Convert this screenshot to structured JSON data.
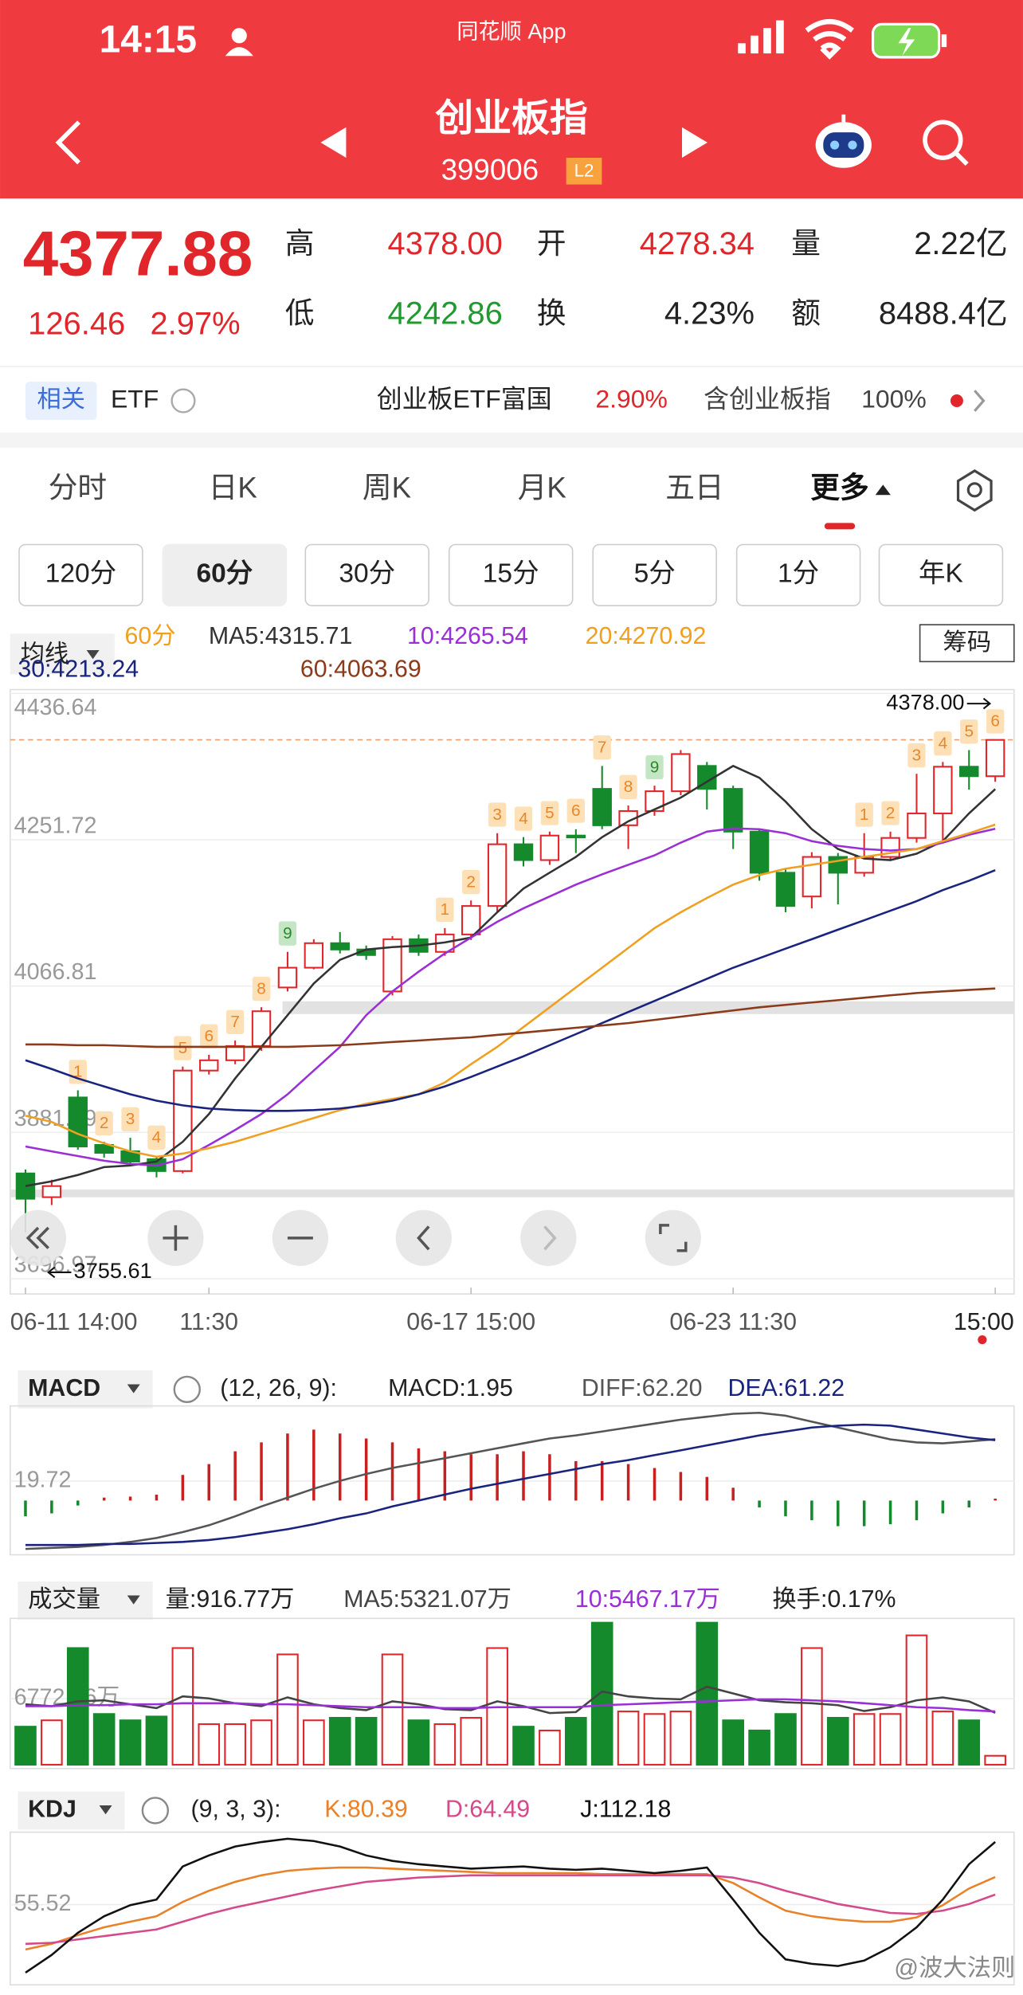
{
  "status_bar": {
    "time": "14:15",
    "app": "同花顺 App"
  },
  "header": {
    "title": "创业板指",
    "code": "399006",
    "badge": "L2"
  },
  "quote": {
    "price": "4377.88",
    "change": "126.46",
    "change_pct": "2.97%",
    "stats": [
      {
        "label": "高",
        "value": "4378.00"
      },
      {
        "label": "开",
        "value": "4278.34"
      },
      {
        "label": "量",
        "value": "2.22亿"
      },
      {
        "label": "低",
        "value": "4242.86"
      },
      {
        "label": "换",
        "value": "4.23%"
      },
      {
        "label": "额",
        "value": "8488.4亿"
      }
    ]
  },
  "related": {
    "tag": "相关",
    "etf": "ETF",
    "fund": "创业板ETF富国",
    "fund_change": "2.90%",
    "index": "含创业板指",
    "weight": "100%"
  },
  "tabs": [
    "分时",
    "日K",
    "周K",
    "月K",
    "五日",
    "更多"
  ],
  "active_tab": 5,
  "periods": [
    "120分",
    "60分",
    "30分",
    "15分",
    "5分",
    "1分",
    "年K"
  ],
  "active_period": 1,
  "watermark": "@波大法则",
  "chart_data": [
    {
      "type": "candlestick",
      "title": "均线",
      "period": "60分",
      "button": "筹码",
      "up_color": "#e0262b",
      "down_color": "#148a2c",
      "open": [
        3830,
        3800,
        3926,
        3866,
        3858,
        3848,
        3833,
        3960,
        3973,
        3991,
        4065,
        4090,
        4121,
        4113,
        4060,
        4126,
        4110,
        4132,
        4168,
        4246,
        4226,
        4257,
        4316,
        4270,
        4288,
        4313,
        4345,
        4316,
        4262,
        4210,
        4180,
        4230,
        4210,
        4230,
        4254,
        4285,
        4344,
        4332
      ],
      "high": [
        3835,
        3822,
        3935,
        3870,
        3875,
        3852,
        3965,
        3980,
        3998,
        4040,
        4110,
        4126,
        4135,
        4118,
        4130,
        4132,
        4140,
        4175,
        4260,
        4255,
        4262,
        4265,
        4345,
        4295,
        4320,
        4365,
        4350,
        4320,
        4265,
        4215,
        4236,
        4235,
        4260,
        4262,
        4335,
        4350,
        4365,
        4378.0
      ],
      "low": [
        3755.61,
        3790,
        3860,
        3850,
        3840,
        3825,
        3830,
        3955,
        3968,
        3985,
        4060,
        4088,
        4108,
        4100,
        4055,
        4105,
        4105,
        4125,
        4160,
        4218,
        4220,
        4235,
        4265,
        4240,
        4282,
        4308,
        4290,
        4240,
        4200,
        4160,
        4165,
        4170,
        4205,
        4225,
        4248,
        4250,
        4315,
        4325
      ],
      "close": [
        3798,
        3814,
        3864,
        3856,
        3845,
        3833,
        3960,
        3973,
        3991,
        4035,
        4090,
        4121,
        4113,
        4106,
        4126,
        4110,
        4132,
        4168,
        4246,
        4226,
        4257,
        4255,
        4270,
        4288,
        4313,
        4360,
        4316,
        4262,
        4210,
        4168,
        4230,
        4210,
        4230,
        4254,
        4285,
        4344,
        4332,
        4377.88
      ],
      "seq": [
        null,
        null,
        1,
        2,
        3,
        4,
        5,
        6,
        7,
        8,
        9,
        null,
        null,
        null,
        null,
        null,
        1,
        2,
        3,
        4,
        5,
        6,
        7,
        8,
        9,
        null,
        null,
        null,
        null,
        null,
        null,
        null,
        1,
        2,
        3,
        4,
        5,
        6
      ],
      "max_label": "4378.00",
      "min_label": "3755.61",
      "series": [
        {
          "name": "MA5:4315.71",
          "color": "#333333",
          "values": [
            3814,
            3820,
            3828,
            3838,
            3840,
            3845,
            3870,
            3905,
            3950,
            3990,
            4030,
            4070,
            4100,
            4113,
            4116,
            4118,
            4122,
            4128,
            4160,
            4190,
            4210,
            4230,
            4255,
            4275,
            4290,
            4305,
            4325,
            4345,
            4330,
            4300,
            4265,
            4240,
            4228,
            4226,
            4234,
            4250,
            4285,
            4315.71
          ]
        },
        {
          "name": "10:4265.54",
          "color": "#9b2fd6",
          "values": [
            3864,
            3858,
            3852,
            3846,
            3842,
            3840,
            3848,
            3866,
            3885,
            3905,
            3930,
            3960,
            3990,
            4030,
            4060,
            4085,
            4108,
            4128,
            4148,
            4165,
            4180,
            4195,
            4208,
            4220,
            4232,
            4248,
            4262,
            4266,
            4265,
            4260,
            4250,
            4244,
            4240,
            4238,
            4240,
            4248,
            4258,
            4265.54
          ]
        },
        {
          "name": "20:4270.92",
          "color": "#f0a020",
          "values": [
            3903,
            3895,
            3880,
            3868,
            3858,
            3851,
            3855,
            3862,
            3870,
            3880,
            3890,
            3900,
            3910,
            3918,
            3924,
            3930,
            3945,
            3968,
            3990,
            4015,
            4040,
            4065,
            4090,
            4115,
            4140,
            4160,
            4178,
            4195,
            4207,
            4215,
            4220,
            4225,
            4230,
            4235,
            4240,
            4250,
            4260,
            4270.92
          ]
        },
        {
          "name": "30:4213.24",
          "color": "#1a237e",
          "values": [
            3973,
            3962,
            3950,
            3940,
            3930,
            3922,
            3916,
            3912,
            3910,
            3909,
            3909,
            3910,
            3912,
            3916,
            3922,
            3930,
            3940,
            3952,
            3965,
            3978,
            3992,
            4006,
            4020,
            4034,
            4048,
            4062,
            4076,
            4090,
            4102,
            4114,
            4126,
            4138,
            4150,
            4162,
            4174,
            4188,
            4200,
            4213.24
          ]
        },
        {
          "name": "60:4063.69",
          "color": "#8b3a1a",
          "values": [
            3993,
            3993,
            3992,
            3992,
            3991,
            3990,
            3990,
            3990,
            3990,
            3990,
            3990,
            3991,
            3992,
            3994,
            3996,
            3998,
            4000,
            4002,
            4005,
            4008,
            4011,
            4014,
            4017,
            4020,
            4024,
            4028,
            4032,
            4036,
            4040,
            4043,
            4046,
            4049,
            4052,
            4055,
            4058,
            4060,
            4062,
            4063.69
          ]
        }
      ],
      "ylim": [
        3696.97,
        4436.64
      ],
      "yticks": [
        4436.64,
        4251.72,
        4066.81,
        3881.89,
        3696.97
      ],
      "xticks": [
        {
          "value": 0,
          "label": "06-11 14:00"
        },
        {
          "value": 7,
          "label": "11:30"
        },
        {
          "value": 17,
          "label": "06-17 15:00"
        },
        {
          "value": 27,
          "label": "06-23 11:30"
        },
        {
          "value": 37,
          "label": "15:00"
        }
      ],
      "grid": true
    },
    {
      "type": "macd",
      "title": "MACD",
      "params": "(12, 26, 9):",
      "bars": {
        "name": "MACD:1.95",
        "up_color": "#c8201f",
        "down_color": "#148a2c",
        "values": [
          -16,
          -13,
          -5,
          3,
          4,
          6,
          26,
          37,
          50,
          59,
          68,
          72,
          68,
          63,
          59,
          53,
          50,
          47,
          47,
          50,
          47,
          40,
          40,
          37,
          33,
          29,
          24,
          13,
          -7,
          -16,
          -20,
          -26,
          -26,
          -24,
          -20,
          -13,
          -7,
          1.95
        ]
      },
      "series": [
        {
          "name": "DIFF:62.20",
          "color": "#555555",
          "values": [
            -49,
            -48,
            -47,
            -45,
            -42,
            -38,
            -32,
            -25,
            -16,
            -6,
            3,
            12,
            20,
            27,
            33,
            38,
            43,
            48,
            53,
            58,
            63,
            66,
            70,
            74,
            78,
            82,
            85,
            88,
            89,
            86,
            80,
            74,
            68,
            62,
            59,
            58,
            60,
            62.2
          ]
        },
        {
          "name": "DEA:61.22",
          "color": "#1a237e",
          "values": [
            -45,
            -45,
            -45,
            -44,
            -44,
            -43,
            -42,
            -40,
            -37,
            -33,
            -29,
            -24,
            -18,
            -13,
            -6,
            0,
            6,
            12,
            17,
            22,
            27,
            32,
            37,
            41,
            46,
            51,
            56,
            61,
            66,
            70,
            74,
            76,
            77,
            76,
            72,
            68,
            64,
            61.22
          ]
        }
      ],
      "ylim": [
        -55,
        96
      ],
      "yticks": [
        19.72
      ]
    },
    {
      "type": "volume",
      "title": "成交量",
      "turnover": "换手:0.17%",
      "bars": {
        "name": "量:916.77万",
        "values": [
          3900,
          4550,
          11960,
          5200,
          4550,
          4940,
          11960,
          4160,
          4160,
          4550,
          11310,
          4550,
          4810,
          4810,
          11310,
          4550,
          4160,
          4810,
          11960,
          3900,
          3510,
          4810,
          14560,
          5460,
          5200,
          5460,
          14560,
          4550,
          3510,
          5200,
          11960,
          4810,
          5200,
          5200,
          13260,
          5460,
          4550,
          916.77
        ]
      },
      "series": [
        {
          "name": "MA5:5321.07万",
          "color": "#444444",
          "values": [
            6200,
            6000,
            6500,
            6600,
            6200,
            5800,
            7000,
            6800,
            6300,
            6000,
            6900,
            6200,
            5800,
            5600,
            6500,
            6200,
            5700,
            5600,
            6500,
            6000,
            5300,
            5400,
            7500,
            7000,
            6800,
            6700,
            8000,
            7300,
            6600,
            6400,
            6300,
            6100,
            5500,
            5900,
            6600,
            6900,
            6500,
            5321.07
          ]
        },
        {
          "name": "10:5467.17万",
          "color": "#9b2fd6",
          "values": [
            6000,
            6000,
            6100,
            6100,
            6200,
            6200,
            6300,
            6300,
            6300,
            6200,
            6200,
            6100,
            6000,
            5900,
            5900,
            5900,
            5800,
            5800,
            5900,
            5900,
            5900,
            5900,
            6100,
            6200,
            6300,
            6400,
            6500,
            6600,
            6700,
            6700,
            6600,
            6500,
            6300,
            6100,
            5900,
            5800,
            5600,
            5467.17
          ]
        }
      ],
      "ylim": [
        0,
        15000
      ],
      "yticks": [
        {
          "value": 6772.76,
          "label": "6772.76万"
        }
      ]
    },
    {
      "type": "line",
      "title": "KDJ",
      "params": "(9, 3, 3):",
      "series": [
        {
          "name": "K:80.39",
          "color": "#e8822a",
          "values": [
            15,
            20,
            28,
            35,
            40,
            45,
            58,
            68,
            76,
            82,
            86,
            88,
            89,
            89,
            88,
            87,
            86,
            85,
            84,
            84,
            84,
            84,
            83,
            83,
            83,
            83,
            83,
            75,
            62,
            50,
            45,
            42,
            40,
            40,
            44,
            55,
            70,
            80.39
          ]
        },
        {
          "name": "D:64.49",
          "color": "#d44a8a",
          "values": [
            20,
            21,
            24,
            27,
            30,
            33,
            40,
            47,
            53,
            58,
            63,
            68,
            72,
            76,
            78,
            80,
            81,
            82,
            82,
            82,
            82,
            82,
            82,
            82,
            82,
            82,
            82,
            80,
            75,
            68,
            62,
            56,
            52,
            48,
            47,
            50,
            56,
            64.49
          ]
        },
        {
          "name": "J:112.18",
          "color": "#111111",
          "values": [
            -6,
            10,
            30,
            45,
            55,
            60,
            90,
            100,
            108,
            112,
            115,
            113,
            108,
            100,
            95,
            92,
            90,
            88,
            89,
            90,
            88,
            87,
            88,
            86,
            84,
            86,
            89,
            60,
            30,
            6,
            2,
            0,
            5,
            17,
            35,
            60,
            92,
            112.18
          ]
        }
      ],
      "ylim": [
        -17,
        121
      ],
      "yticks": [
        55.52
      ]
    }
  ]
}
